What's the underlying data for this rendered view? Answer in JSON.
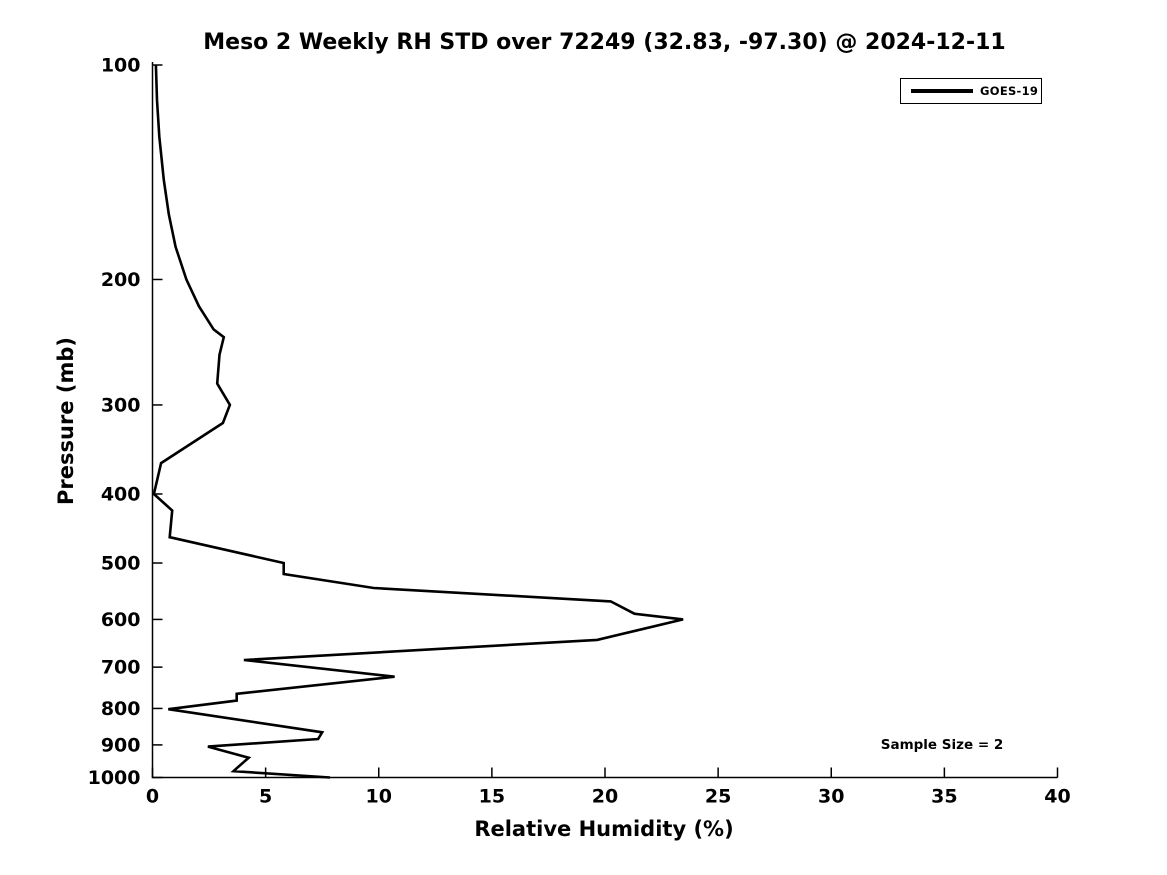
{
  "chart_data": {
    "type": "line",
    "title": "Meso 2 Weekly RH STD over 72249 (32.83, -97.30) @ 2024-12-11",
    "xlabel": "Relative Humidity (%)",
    "ylabel": "Pressure (mb)",
    "xlim": [
      0,
      40
    ],
    "ylim": [
      100,
      1000
    ],
    "y_scale": "log",
    "y_direction": "inverted-pressure-downward",
    "grid": false,
    "xticks": [
      0,
      5,
      10,
      15,
      20,
      25,
      30,
      35,
      40
    ],
    "yticks": [
      100,
      200,
      300,
      400,
      500,
      600,
      700,
      800,
      900,
      1000
    ],
    "legend": {
      "position": "upper right",
      "entries": [
        "GOES-19"
      ]
    },
    "annotation": {
      "text": "Sample Size = 2",
      "approx_x": 34.9,
      "approx_pressure_mb": 900
    },
    "series": [
      {
        "name": "GOES-19",
        "color": "#000000",
        "pressure_mb": [
          100,
          112,
          126,
          145,
          162,
          180,
          200,
          218,
          235,
          241,
          255,
          280,
          300,
          318,
          362,
          400,
          422,
          460,
          500,
          518,
          542,
          566,
          589,
          600,
          641,
          684,
          722,
          763,
          780,
          802,
          864,
          883,
          905,
          938,
          972,
          980,
          1000
        ],
        "rh_std_percent": [
          0.15,
          0.2,
          0.3,
          0.5,
          0.72,
          1.02,
          1.5,
          2.05,
          2.7,
          3.15,
          2.96,
          2.86,
          3.42,
          3.11,
          0.38,
          0.06,
          0.87,
          0.76,
          5.8,
          5.8,
          9.78,
          20.25,
          21.3,
          23.45,
          19.65,
          4.04,
          10.7,
          3.72,
          3.72,
          0.7,
          7.5,
          7.32,
          2.45,
          4.25,
          3.7,
          3.58,
          7.85
        ]
      }
    ]
  }
}
